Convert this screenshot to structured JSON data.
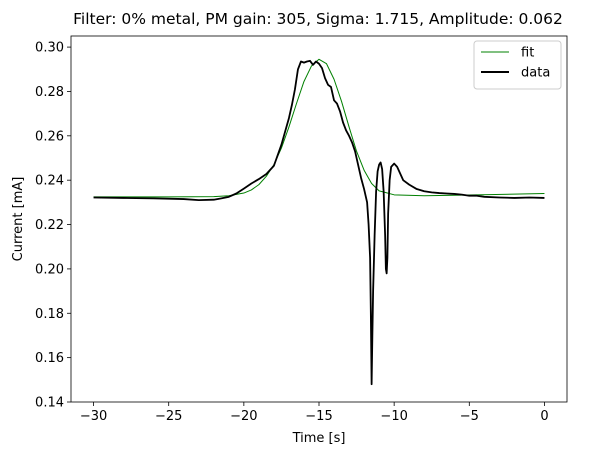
{
  "chart_data": {
    "type": "line",
    "title": "Filter: 0% metal, PM gain: 305, Sigma: 1.715, Amplitude: 0.062",
    "xlabel": "Time [s]",
    "ylabel": "Current [mA]",
    "xlim": [
      -31.5,
      1.5
    ],
    "ylim": [
      0.14,
      0.305
    ],
    "xticks": [
      -30,
      -25,
      -20,
      -15,
      -10,
      -5,
      0
    ],
    "xtick_labels": [
      "−30",
      "−25",
      "−20",
      "−15",
      "−10",
      "−5",
      "0"
    ],
    "yticks": [
      0.14,
      0.16,
      0.18,
      0.2,
      0.22,
      0.24,
      0.26,
      0.28,
      0.3
    ],
    "ytick_labels": [
      "0.14",
      "0.16",
      "0.18",
      "0.20",
      "0.22",
      "0.24",
      "0.26",
      "0.28",
      "0.30"
    ],
    "grid": false,
    "legend": {
      "position": "top-right"
    },
    "series": [
      {
        "name": "fit",
        "color": "#008000",
        "style": "thin",
        "x": [
          -30,
          -25,
          -22,
          -21,
          -20,
          -19.5,
          -19,
          -18.5,
          -18,
          -17.5,
          -17,
          -16.5,
          -16,
          -15.5,
          -15,
          -14.5,
          -14,
          -13.5,
          -13,
          -12.5,
          -12,
          -11.5,
          -11,
          -10,
          -8,
          -5,
          0
        ],
        "y": [
          0.2325,
          0.2325,
          0.2326,
          0.233,
          0.2342,
          0.2356,
          0.238,
          0.2418,
          0.247,
          0.2545,
          0.264,
          0.2745,
          0.2845,
          0.2915,
          0.2945,
          0.2925,
          0.2855,
          0.2755,
          0.264,
          0.253,
          0.2445,
          0.2385,
          0.2352,
          0.2334,
          0.233,
          0.2333,
          0.234
        ]
      },
      {
        "name": "data",
        "color": "#000000",
        "style": "thick",
        "x": [
          -30,
          -28,
          -26,
          -24,
          -23,
          -22,
          -21.5,
          -21,
          -20.5,
          -20,
          -19.5,
          -19,
          -18.5,
          -18,
          -17.5,
          -17,
          -16.8,
          -16.6,
          -16.4,
          -16.2,
          -16,
          -15.8,
          -15.6,
          -15.4,
          -15.2,
          -15,
          -14.8,
          -14.6,
          -14.4,
          -14.2,
          -14,
          -13.8,
          -13.6,
          -13.4,
          -13.2,
          -13,
          -12.8,
          -12.6,
          -12.4,
          -12.2,
          -12,
          -11.8,
          -11.7,
          -11.6,
          -11.55,
          -11.5,
          -11.45,
          -11.4,
          -11.3,
          -11.2,
          -11.1,
          -11.0,
          -10.9,
          -10.8,
          -10.7,
          -10.6,
          -10.55,
          -10.5,
          -10.45,
          -10.4,
          -10.3,
          -10.2,
          -10.0,
          -9.8,
          -9.6,
          -9.4,
          -9.0,
          -8.5,
          -8,
          -7.5,
          -7,
          -6.5,
          -6,
          -5.5,
          -5,
          -4.5,
          -4,
          -3,
          -2,
          -1,
          0
        ],
        "y": [
          0.2322,
          0.232,
          0.2318,
          0.2315,
          0.231,
          0.2312,
          0.2318,
          0.2325,
          0.234,
          0.2362,
          0.2385,
          0.2405,
          0.2428,
          0.2465,
          0.256,
          0.268,
          0.274,
          0.281,
          0.29,
          0.2935,
          0.293,
          0.2935,
          0.2938,
          0.292,
          0.2935,
          0.2925,
          0.2905,
          0.286,
          0.283,
          0.282,
          0.276,
          0.2745,
          0.271,
          0.266,
          0.2625,
          0.26,
          0.257,
          0.253,
          0.247,
          0.241,
          0.236,
          0.23,
          0.22,
          0.205,
          0.18,
          0.148,
          0.17,
          0.19,
          0.215,
          0.235,
          0.244,
          0.247,
          0.248,
          0.245,
          0.235,
          0.215,
          0.2,
          0.198,
          0.205,
          0.225,
          0.24,
          0.246,
          0.2475,
          0.246,
          0.243,
          0.24,
          0.238,
          0.236,
          0.235,
          0.2345,
          0.2342,
          0.234,
          0.2338,
          0.2335,
          0.233,
          0.233,
          0.2325,
          0.2322,
          0.232,
          0.2322,
          0.232
        ]
      }
    ]
  }
}
